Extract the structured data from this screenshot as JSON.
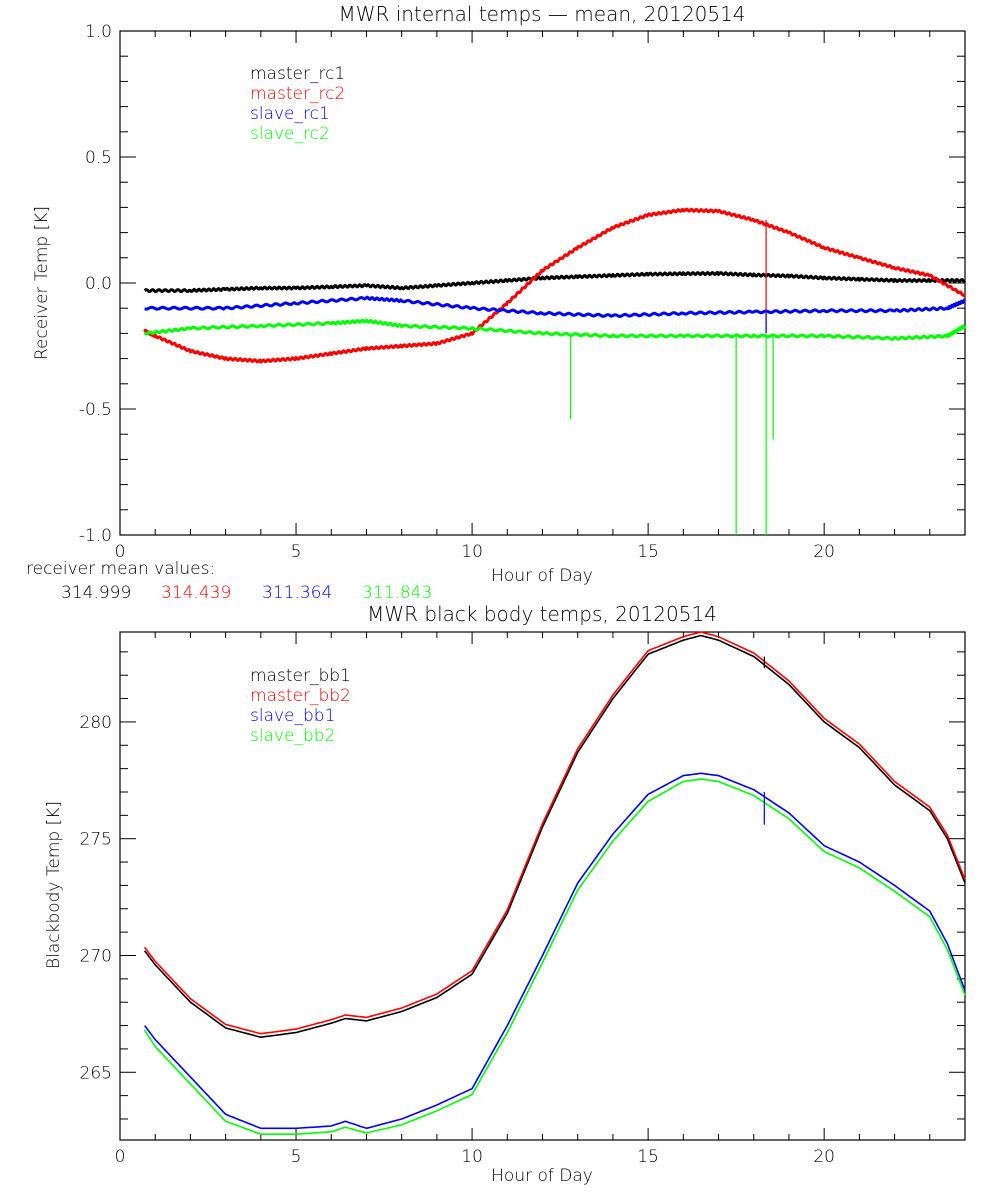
{
  "chart_data": [
    {
      "type": "line",
      "title": "MWR internal temps — mean, 20120514",
      "xlabel": "Hour of Day",
      "ylabel": "Receiver Temp [K]",
      "xlim": [
        0,
        24
      ],
      "ylim": [
        -1.0,
        1.0
      ],
      "xticks": [
        0,
        5,
        10,
        15,
        20
      ],
      "yticks": [
        -1.0,
        -0.5,
        0.0,
        0.5,
        1.0
      ],
      "ytick_labels": [
        "-1.0",
        "-0.5",
        "0.0",
        "0.5",
        "1.0"
      ],
      "grid": false,
      "legend": "top-left",
      "series": [
        {
          "name": "master_rc1",
          "color": "#000000",
          "x": [
            0.7,
            2,
            3,
            4,
            5,
            6,
            7,
            8,
            9,
            10,
            11,
            12,
            13,
            14,
            15,
            16,
            17,
            18,
            19,
            20,
            21,
            22,
            23,
            24
          ],
          "y": [
            -0.03,
            -0.03,
            -0.025,
            -0.02,
            -0.02,
            -0.015,
            -0.01,
            -0.02,
            -0.01,
            0.0,
            0.01,
            0.02,
            0.025,
            0.03,
            0.035,
            0.037,
            0.038,
            0.032,
            0.028,
            0.02,
            0.015,
            0.01,
            0.01,
            0.01
          ]
        },
        {
          "name": "master_rc2",
          "color": "#ff0000",
          "x": [
            0.7,
            1,
            2,
            3,
            4,
            5,
            6,
            7,
            8,
            9,
            10,
            11,
            12,
            13,
            14,
            15,
            16,
            17,
            18,
            19,
            20,
            21,
            22,
            23,
            24
          ],
          "y": [
            -0.19,
            -0.21,
            -0.27,
            -0.3,
            -0.31,
            -0.3,
            -0.28,
            -0.26,
            -0.25,
            -0.24,
            -0.2,
            -0.08,
            0.05,
            0.14,
            0.22,
            0.27,
            0.29,
            0.285,
            0.25,
            0.2,
            0.14,
            0.1,
            0.06,
            0.03,
            -0.05
          ]
        },
        {
          "name": "slave_rc1",
          "color": "#0000ff",
          "x": [
            0.7,
            3,
            5,
            7,
            8,
            10,
            12,
            14,
            16,
            18,
            20,
            22,
            23.5,
            24
          ],
          "y": [
            -0.1,
            -0.1,
            -0.08,
            -0.06,
            -0.07,
            -0.1,
            -0.12,
            -0.13,
            -0.12,
            -0.115,
            -0.11,
            -0.11,
            -0.1,
            -0.07
          ]
        },
        {
          "name": "slave_rc2",
          "color": "#00ff00",
          "x": [
            0.7,
            2,
            4,
            6,
            7,
            8,
            10,
            12,
            14,
            16,
            18,
            20,
            22,
            23.5,
            24
          ],
          "y": [
            -0.2,
            -0.18,
            -0.17,
            -0.16,
            -0.15,
            -0.17,
            -0.18,
            -0.2,
            -0.21,
            -0.21,
            -0.21,
            -0.21,
            -0.22,
            -0.21,
            -0.17
          ]
        }
      ],
      "spikes": [
        {
          "series": "slave_rc2",
          "x": 12.8,
          "from": -0.2,
          "to": -0.54
        },
        {
          "series": "slave_rc2",
          "x": 17.5,
          "from": -0.21,
          "to": -1.0
        },
        {
          "series": "slave_rc2",
          "x": 18.35,
          "from": -0.21,
          "to": -1.0
        },
        {
          "series": "slave_rc2",
          "x": 18.55,
          "from": -0.21,
          "to": -0.62
        },
        {
          "series": "master_rc2",
          "x": 18.35,
          "from": 0.25,
          "to": -0.2
        },
        {
          "series": "slave_rc1",
          "x": 18.35,
          "from": -0.11,
          "to": -0.2
        }
      ],
      "annotation_label": "receiver mean values:",
      "mean_values": [
        {
          "series": "master_rc1",
          "value": "314.999",
          "color": "#000000"
        },
        {
          "series": "master_rc2",
          "value": "314.439",
          "color": "#ff0000"
        },
        {
          "series": "slave_rc1",
          "value": "311.364",
          "color": "#0000ff"
        },
        {
          "series": "slave_rc2",
          "value": "311.843",
          "color": "#00ff00"
        }
      ]
    },
    {
      "type": "line",
      "title": "MWR black body temps, 20120514",
      "xlabel": "Hour of Day",
      "ylabel": "Blackbody Temp [K]",
      "xlim": [
        0,
        24
      ],
      "ylim": [
        262.1,
        283.85
      ],
      "xticks": [
        0,
        5,
        10,
        15,
        20
      ],
      "yticks": [
        265,
        270,
        275,
        280
      ],
      "ytick_labels": [
        "265",
        "270",
        "275",
        "280"
      ],
      "grid": false,
      "legend": "top-left",
      "series": [
        {
          "name": "master_bb1",
          "color": "#000000",
          "x": [
            0.7,
            1,
            2,
            3,
            4,
            5,
            6,
            6.4,
            7,
            8,
            9,
            10,
            11,
            12,
            13,
            14,
            15,
            16,
            16.5,
            17,
            18,
            19,
            20,
            21,
            22,
            23,
            23.5,
            24
          ],
          "y": [
            270.2,
            269.6,
            268.0,
            266.9,
            266.5,
            266.7,
            267.1,
            267.3,
            267.2,
            267.6,
            268.2,
            269.2,
            271.8,
            275.5,
            278.7,
            281.0,
            282.9,
            283.5,
            283.7,
            283.5,
            282.8,
            281.6,
            280.0,
            278.9,
            277.3,
            276.2,
            275.0,
            273.1
          ]
        },
        {
          "name": "master_bb2",
          "color": "#ff0000",
          "x": [
            0.7,
            1,
            2,
            3,
            4,
            5,
            6,
            6.4,
            7,
            8,
            9,
            10,
            11,
            12,
            13,
            14,
            15,
            16,
            16.5,
            17,
            18,
            19,
            20,
            21,
            22,
            23,
            23.5,
            24
          ],
          "y": [
            270.35,
            269.75,
            268.15,
            267.05,
            266.65,
            266.85,
            267.25,
            267.45,
            267.35,
            267.75,
            268.35,
            269.35,
            271.95,
            275.65,
            278.85,
            281.15,
            283.05,
            283.65,
            283.85,
            283.65,
            282.95,
            281.75,
            280.15,
            279.05,
            277.45,
            276.35,
            275.15,
            273.25
          ]
        },
        {
          "name": "slave_bb1",
          "color": "#0000ff",
          "x": [
            0.7,
            1,
            2,
            3,
            4,
            5,
            6,
            6.4,
            7,
            8,
            9,
            10,
            11,
            12,
            13,
            14,
            15,
            16,
            16.5,
            17,
            18,
            19,
            20,
            21,
            22,
            23,
            23.5,
            24
          ],
          "y": [
            267.0,
            266.4,
            264.8,
            263.2,
            262.6,
            262.6,
            262.7,
            262.9,
            262.6,
            263.0,
            263.6,
            264.3,
            267.0,
            270.0,
            273.1,
            275.2,
            276.9,
            277.7,
            277.8,
            277.7,
            277.1,
            276.1,
            274.7,
            274.0,
            273.0,
            271.9,
            270.5,
            268.5
          ]
        },
        {
          "name": "slave_bb2",
          "color": "#00ff00",
          "x": [
            0.7,
            1,
            2,
            3,
            4,
            5,
            6,
            6.4,
            7,
            8,
            9,
            10,
            11,
            12,
            13,
            14,
            15,
            16,
            16.5,
            17,
            18,
            19,
            20,
            21,
            22,
            23,
            23.5,
            24
          ],
          "y": [
            266.8,
            266.1,
            264.5,
            262.9,
            262.35,
            262.35,
            262.45,
            262.65,
            262.4,
            262.75,
            263.35,
            264.05,
            266.7,
            269.7,
            272.8,
            274.9,
            276.6,
            277.45,
            277.55,
            277.45,
            276.85,
            275.85,
            274.45,
            273.75,
            272.75,
            271.65,
            270.25,
            268.3
          ]
        }
      ],
      "spikes": [
        {
          "series": "slave_bb1",
          "x": 18.3,
          "from": 277.0,
          "to": 275.6
        },
        {
          "series": "master_bb1",
          "x": 18.3,
          "from": 282.8,
          "to": 282.3
        }
      ]
    }
  ]
}
